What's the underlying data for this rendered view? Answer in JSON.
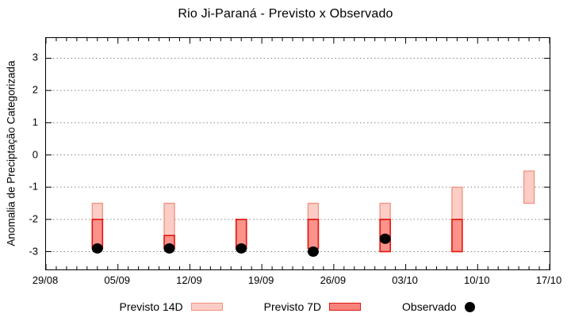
{
  "chart_data": {
    "type": "bar",
    "title": "Rio Ji-Paraná - Previsto x Observado",
    "xlabel": "",
    "ylabel": "Anomalia de Preciptação Categorizada",
    "x_axis": {
      "major_tick_labels": [
        "29/08",
        "05/09",
        "12/09",
        "19/09",
        "26/09",
        "03/10",
        "10/10",
        "17/10"
      ],
      "major_tick_interval_days": 7,
      "minor_tick_interval_days": 1,
      "total_days": 49
    },
    "y_axis": {
      "ticks": [
        3,
        2,
        1,
        0,
        -1,
        -2,
        -3
      ],
      "range": [
        -3.55,
        3.63
      ],
      "grid": "dotted horizontal"
    },
    "series": [
      {
        "name": "Previsto 14D",
        "type": "range-bar",
        "fill": "#fbcdc6",
        "stroke": "#f0917e"
      },
      {
        "name": "Previsto 7D",
        "type": "range-bar",
        "fill": "#fa938c",
        "stroke": "#e51309"
      },
      {
        "name": "Observado",
        "type": "scatter",
        "color": "#000000"
      }
    ],
    "groups": [
      {
        "date": "03/09",
        "day": 5,
        "previsto_14d": [
          -1.5,
          -2.0
        ],
        "previsto_7d": [
          -2.0,
          -2.9
        ],
        "observado": -2.9
      },
      {
        "date": "10/09",
        "day": 12,
        "previsto_14d": [
          -1.5,
          -2.5
        ],
        "previsto_7d": [
          -2.5,
          -2.9
        ],
        "observado": -2.9
      },
      {
        "date": "17/09",
        "day": 19,
        "previsto_14d": null,
        "previsto_7d": [
          -2.0,
          -2.9
        ],
        "observado": -2.9
      },
      {
        "date": "24/09",
        "day": 26,
        "previsto_14d": [
          -1.5,
          -2.0
        ],
        "previsto_7d": [
          -2.0,
          -2.9
        ],
        "observado": -3.0
      },
      {
        "date": "01/10",
        "day": 33,
        "previsto_14d": [
          -1.5,
          -2.0
        ],
        "previsto_7d": [
          -2.0,
          -3.0
        ],
        "observado": -2.6
      },
      {
        "date": "08/10",
        "day": 40,
        "previsto_14d": [
          -1.0,
          -2.0
        ],
        "previsto_7d": [
          -2.0,
          -3.0
        ],
        "observado": null
      },
      {
        "date": "15/10",
        "day": 47,
        "previsto_14d": [
          -0.5,
          -1.5
        ],
        "previsto_7d": null,
        "observado": null
      }
    ],
    "legend_position": "bottom-center"
  },
  "colors": {
    "background": "#ffffff",
    "border": "#000000",
    "gridline": "#858585",
    "previsto_14d_fill": "#fbcdc6",
    "previsto_14d_stroke": "#f0917e",
    "previsto_7d_fill": "#fa938c",
    "previsto_7d_stroke": "#e51309",
    "observado": "#000000"
  }
}
